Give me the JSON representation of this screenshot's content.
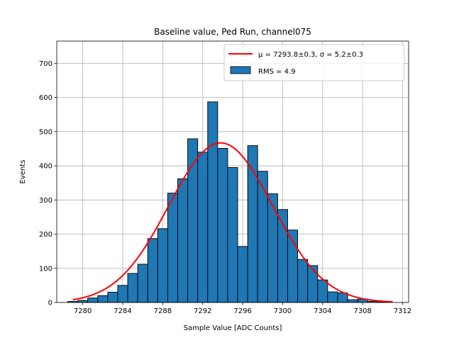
{
  "chart_data": {
    "type": "histogram",
    "title": "Baseline value, Ped Run, channel075",
    "xlabel": "Sample Value [ADC Counts]",
    "ylabel": "Events",
    "xlim": [
      7277.4,
      7312.6
    ],
    "ylim": [
      0,
      765
    ],
    "xticks": [
      7280,
      7284,
      7288,
      7292,
      7296,
      7300,
      7304,
      7308,
      7312
    ],
    "yticks": [
      0,
      100,
      200,
      300,
      400,
      500,
      600,
      700
    ],
    "grid": true,
    "legend_position": "top-right",
    "bin_width": 1,
    "bins": [
      {
        "x": 7279,
        "value": 3
      },
      {
        "x": 7280,
        "value": 6
      },
      {
        "x": 7281,
        "value": 13
      },
      {
        "x": 7282,
        "value": 20
      },
      {
        "x": 7283,
        "value": 30
      },
      {
        "x": 7284,
        "value": 50
      },
      {
        "x": 7285,
        "value": 85
      },
      {
        "x": 7286,
        "value": 112
      },
      {
        "x": 7287,
        "value": 187
      },
      {
        "x": 7288,
        "value": 216
      },
      {
        "x": 7289,
        "value": 320
      },
      {
        "x": 7290,
        "value": 362
      },
      {
        "x": 7291,
        "value": 479
      },
      {
        "x": 7292,
        "value": 440
      },
      {
        "x": 7293,
        "value": 587
      },
      {
        "x": 7294,
        "value": 451
      },
      {
        "x": 7295,
        "value": 395
      },
      {
        "x": 7296,
        "value": 164
      },
      {
        "x": 7297,
        "value": 459
      },
      {
        "x": 7298,
        "value": 384
      },
      {
        "x": 7299,
        "value": 318
      },
      {
        "x": 7300,
        "value": 272
      },
      {
        "x": 7301,
        "value": 212
      },
      {
        "x": 7302,
        "value": 126
      },
      {
        "x": 7303,
        "value": 108
      },
      {
        "x": 7304,
        "value": 66
      },
      {
        "x": 7305,
        "value": 31
      },
      {
        "x": 7306,
        "value": 28
      },
      {
        "x": 7307,
        "value": 8
      },
      {
        "x": 7308,
        "value": 10
      },
      {
        "x": 7309,
        "value": 3
      },
      {
        "x": 7310,
        "value": 1
      }
    ],
    "bar_color": "#1f77b4",
    "bar_edge_color": "#000000",
    "fit": {
      "type": "gaussian",
      "mu": 7293.8,
      "sigma": 5.2,
      "amplitude": 467,
      "x_range": [
        7279,
        7311
      ],
      "color": "#ff0000"
    },
    "legend": [
      {
        "label": "μ = 7293.8±0.3, σ = 5.2±0.3",
        "type": "line",
        "color": "#ff0000"
      },
      {
        "label": "RMS = 4.9",
        "type": "patch",
        "color": "#1f77b4"
      }
    ]
  }
}
